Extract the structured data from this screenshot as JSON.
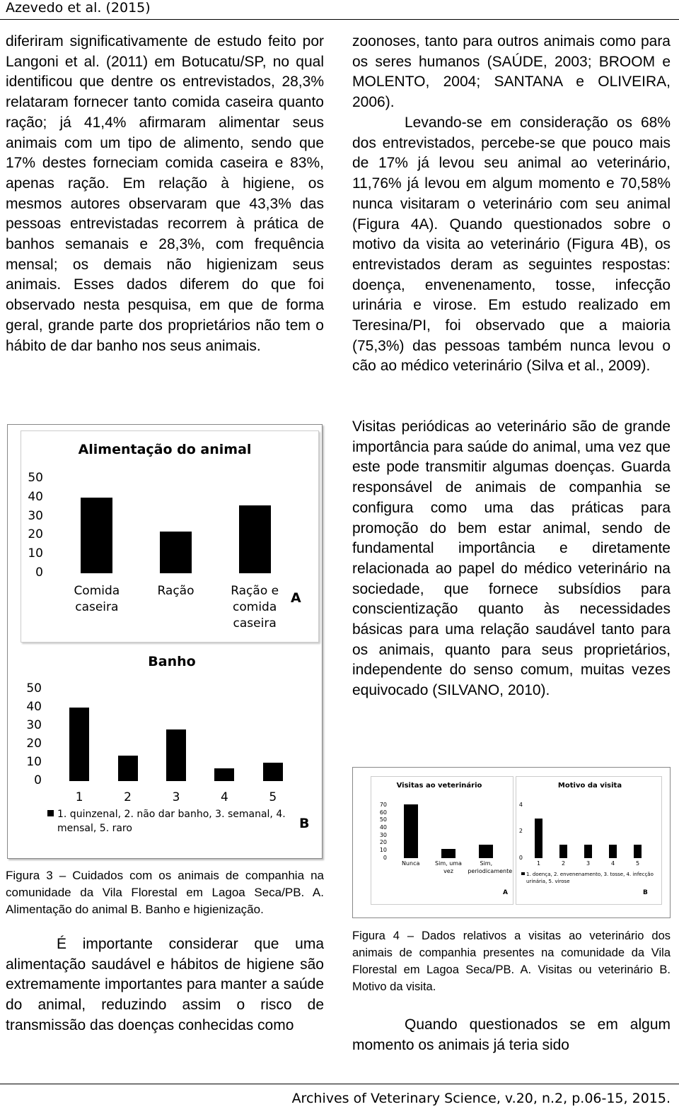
{
  "header": {
    "running_head": "Azevedo et al. (2015)"
  },
  "left_paragraph": "diferiram significativamente de estudo feito por Langoni et al. (2011) em Botucatu/SP, no qual identificou que dentre os entrevistados, 28,3% relataram fornecer tanto comida caseira quanto ração; já 41,4% afirmaram alimentar seus animais com um tipo de alimento, sendo que 17% destes forneciam comida caseira e 83%, apenas ração. Em relação à higiene, os mesmos autores observaram que 43,3% das pessoas entrevistadas recorrem à prática de banhos semanais e 28,3%, com frequência mensal; os demais não higienizam seus animais. Esses dados diferem do que foi observado nesta pesquisa, em que de forma geral, grande parte dos proprietários não tem o hábito de dar banho nos seus animais.",
  "figure_3": {
    "charts": [
      {
        "type": "bar",
        "title": "Alimentação do animal",
        "categories": [
          "Comida caseira",
          "Ração",
          "Ração e comida caseira"
        ],
        "values": [
          40,
          22,
          36
        ],
        "color": "#000000",
        "ylim": [
          0,
          50
        ],
        "yticks": [
          0,
          10,
          20,
          30,
          40,
          50
        ],
        "panel_label": "A"
      },
      {
        "type": "bar",
        "title": "Banho",
        "categories": [
          "1",
          "2",
          "3",
          "4",
          "5"
        ],
        "values": [
          40,
          14,
          28,
          7,
          10
        ],
        "color": "#000000",
        "ylim": [
          0,
          50
        ],
        "yticks": [
          0,
          10,
          20,
          30,
          40,
          50
        ],
        "legend_text": "1. quinzenal, 2. não dar banho, 3. semanal, 4. mensal, 5. raro",
        "panel_label": "B"
      }
    ],
    "caption": "Figura 3 – Cuidados com os animais de companhia na comunidade da Vila Florestal em Lagoa Seca/PB. A. Alimentação do animal B. Banho e higienização."
  },
  "left_paragraph_2": "É importante considerar que uma alimentação saudável e hábitos de higiene são extremamente importantes para manter a saúde do animal, reduzindo assim o risco de transmissão das doenças conhecidas como",
  "right_paragraphs": [
    "zoonoses, tanto para outros animais como para os seres humanos (SAÚDE, 2003; BROOM e MOLENTO, 2004; SANTANA e OLIVEIRA, 2006).",
    "Levando-se em consideração os 68% dos entrevistados, percebe-se que pouco mais de 17% já levou seu animal ao veterinário, 11,76% já levou em algum momento e 70,58% nunca visitaram o veterinário com seu animal (Figura 4A). Quando questionados sobre o motivo da visita ao veterinário (Figura 4B), os entrevistados deram as seguintes respostas: doença, envenenamento, tosse, infecção urinária e virose. Em estudo realizado em Teresina/PI, foi observado que a maioria (75,3%) das pessoas também nunca levou o cão ao médico veterinário (Silva et al., 2009).",
    "Visitas periódicas ao veterinário são de grande importância para saúde do animal, uma vez que este pode transmitir algumas doenças. Guarda responsável de animais de companhia se configura como uma das práticas para promoção do bem estar animal, sendo de fundamental importância e diretamente relacionada ao papel do médico veterinário na sociedade, que fornece subsídios para conscientização quanto às necessidades básicas para uma relação saudável tanto para os animais, quanto para seus proprietários, independente do senso comum, muitas vezes equivocado (SILVANO, 2010)."
  ],
  "figure_4": {
    "charts": [
      {
        "type": "bar",
        "title": "Visitas ao veterinário",
        "categories": [
          "Nunca",
          "Sim, uma vez",
          "Sim, periodicamente"
        ],
        "values": [
          71,
          12,
          18
        ],
        "color": "#000000",
        "ylim": [
          0,
          70
        ],
        "yticks": [
          0,
          10,
          20,
          30,
          40,
          50,
          60,
          70
        ],
        "panel_label": "A"
      },
      {
        "type": "bar",
        "title": "Motivo da visita",
        "categories": [
          "1",
          "2",
          "3",
          "4",
          "5"
        ],
        "values": [
          3,
          1,
          1,
          1,
          1
        ],
        "color": "#000000",
        "ylim": [
          0,
          4
        ],
        "yticks": [
          0,
          2,
          4
        ],
        "legend_text": "1. doença, 2. envenenamento, 3. tosse, 4. infecção urinária, 5. virose",
        "panel_label": "B"
      }
    ],
    "caption": "Figura 4 – Dados relativos a visitas ao veterinário dos animais de companhia presentes na comunidade da Vila Florestal em Lagoa Seca/PB. A. Visitas ou veterinário B. Motivo da visita."
  },
  "right_paragraph_last": "Quando questionados se em algum momento os animais já teria sido",
  "footer": {
    "citation": "Archives of Veterinary Science, v.20, n.2, p.06-15, 2015."
  }
}
